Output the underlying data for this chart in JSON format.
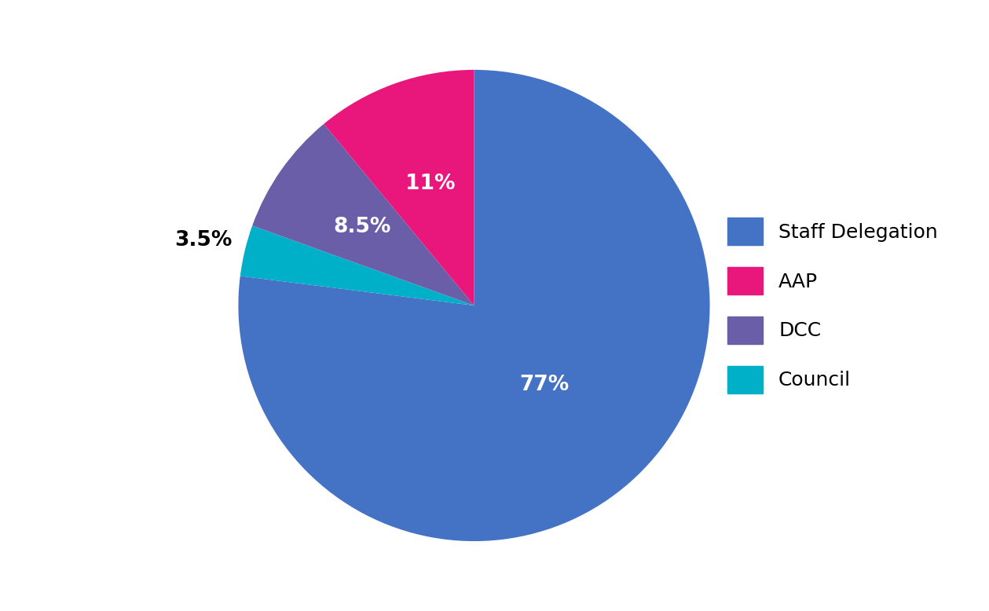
{
  "labels": [
    "Staff Delegation",
    "AAP",
    "DCC",
    "Council"
  ],
  "colors": [
    "#4472C4",
    "#E9177C",
    "#6B5EA8",
    "#00B0C8"
  ],
  "legend_order": [
    "Staff Delegation",
    "AAP",
    "DCC",
    "Council"
  ],
  "plot_values": [
    77,
    11,
    8.5,
    3.5
  ],
  "plot_colors": [
    "#4472C4",
    "#E9177C",
    "#6B5EA8",
    "#00B0C8"
  ],
  "plot_labels": [
    "77%",
    "11%",
    "8.5%",
    "3.5%"
  ],
  "plot_label_colors": [
    "white",
    "white",
    "white",
    "black"
  ],
  "background_color": "#ffffff",
  "legend_fontsize": 18,
  "startangle": 90
}
